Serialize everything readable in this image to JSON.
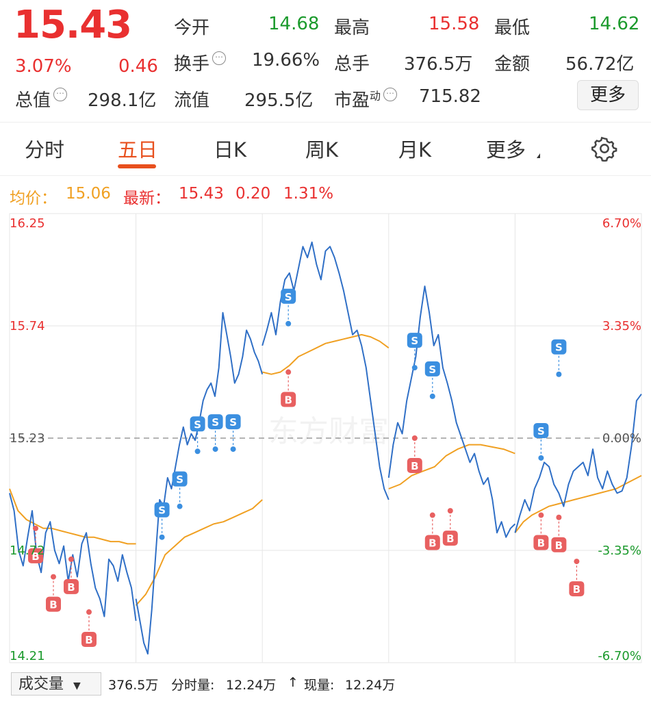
{
  "quote": {
    "price": "15.43",
    "change_pct": "3.07%",
    "change": "0.46",
    "open_label": "今开",
    "open": "14.68",
    "high_label": "最高",
    "high": "15.58",
    "low_label": "最低",
    "low": "14.62",
    "turnover_label": "换手",
    "turnover": "19.66%",
    "volume_label": "总手",
    "volume": "376.5万",
    "amount_label": "金额",
    "amount": "56.72亿",
    "mktcap_label": "总值",
    "mktcap": "298.1亿",
    "float_label": "流值",
    "float_cap": "295.5亿",
    "pe_label": "市盈",
    "pe_sup": "动",
    "pe": "715.82",
    "more_label": "更多"
  },
  "tabs": [
    "分时",
    "五日",
    "日K",
    "周K",
    "月K",
    "更多"
  ],
  "active_tab": "五日",
  "legend": {
    "avg_label": "均价：",
    "avg": "15.06",
    "latest_label": "最新：",
    "latest": "15.43",
    "latest_chg": "0.20",
    "latest_pct": "1.31%"
  },
  "colors": {
    "up": "#e93030",
    "down": "#1b9a2c",
    "accent": "#e8501e",
    "price_line": "#2f6fc6",
    "avg_line": "#f0a022"
  },
  "chart_data": {
    "type": "line",
    "y_left_ticks": [
      "16.25",
      "15.74",
      "15.23",
      "14.72",
      "14.21"
    ],
    "y_right_ticks": [
      "6.70%",
      "3.35%",
      "0.00%",
      "-3.35%",
      "-6.70%"
    ],
    "ylim": [
      14.21,
      16.25
    ],
    "reference": 15.23,
    "days": 5,
    "watermark": "东方财富",
    "series": [
      {
        "role": "price",
        "days": [
          [
            14.98,
            14.9,
            14.72,
            14.65,
            14.78,
            14.9,
            14.7,
            14.62,
            14.8,
            14.85,
            14.72,
            14.66,
            14.74,
            14.58,
            14.7,
            14.6,
            14.75,
            14.8,
            14.66,
            14.55,
            14.5,
            14.42,
            14.68,
            14.65,
            14.58,
            14.7,
            14.62,
            14.55,
            14.4
          ],
          [
            14.5,
            14.4,
            14.3,
            14.25,
            14.45,
            14.7,
            14.95,
            14.92,
            15.05,
            15.0,
            15.1,
            15.2,
            15.28,
            15.2,
            15.25,
            15.22,
            15.3,
            15.4,
            15.45,
            15.48,
            15.42,
            15.55,
            15.8,
            15.7,
            15.6,
            15.48,
            15.52,
            15.6,
            15.72,
            15.68,
            15.62,
            15.58,
            15.52
          ],
          [
            15.65,
            15.72,
            15.8,
            15.7,
            15.85,
            15.95,
            15.98,
            15.9,
            16.0,
            16.1,
            16.05,
            16.12,
            16.02,
            15.95,
            16.08,
            16.1,
            16.05,
            15.98,
            15.9,
            15.8,
            15.7,
            15.72,
            15.65,
            15.55,
            15.4,
            15.25,
            15.1,
            15.0,
            14.95
          ],
          [
            15.05,
            15.2,
            15.3,
            15.25,
            15.4,
            15.5,
            15.6,
            15.78,
            15.92,
            15.8,
            15.65,
            15.7,
            15.55,
            15.48,
            15.4,
            15.3,
            15.24,
            15.18,
            15.12,
            15.16,
            15.08,
            15.02,
            15.05,
            14.95,
            14.8,
            14.85,
            14.78,
            14.82,
            14.84
          ],
          [
            14.8,
            14.88,
            14.95,
            14.9,
            15.0,
            15.05,
            15.12,
            15.1,
            15.02,
            14.98,
            14.92,
            15.02,
            15.08,
            15.1,
            15.12,
            15.06,
            15.18,
            15.05,
            15.0,
            15.08,
            15.02,
            14.98,
            14.99,
            15.05,
            15.2,
            15.4,
            15.43
          ]
        ]
      },
      {
        "role": "average",
        "days": [
          [
            15.0,
            14.9,
            14.86,
            14.84,
            14.82,
            14.82,
            14.81,
            14.8,
            14.79,
            14.78,
            14.78,
            14.77,
            14.76,
            14.76,
            14.75,
            14.75
          ],
          [
            14.47,
            14.52,
            14.6,
            14.7,
            14.74,
            14.78,
            14.8,
            14.82,
            14.84,
            14.85,
            14.87,
            14.89,
            14.91,
            14.95
          ],
          [
            15.53,
            15.52,
            15.53,
            15.56,
            15.6,
            15.62,
            15.64,
            15.66,
            15.67,
            15.68,
            15.69,
            15.7,
            15.69,
            15.67,
            15.64
          ],
          [
            15.0,
            15.02,
            15.06,
            15.08,
            15.1,
            15.15,
            15.18,
            15.2,
            15.2,
            15.19,
            15.18,
            15.16
          ],
          [
            14.8,
            14.85,
            14.88,
            14.9,
            14.92,
            14.93,
            14.94,
            14.95,
            14.96,
            14.97,
            14.98,
            14.99,
            15.0,
            15.02,
            15.04,
            15.06
          ]
        ]
      }
    ],
    "signals": [
      {
        "type": "B",
        "day": 0,
        "y": 14.82
      },
      {
        "type": "B",
        "day": 0,
        "y": 14.6
      },
      {
        "type": "B",
        "day": 0,
        "y": 14.68
      },
      {
        "type": "B",
        "day": 0,
        "y": 14.44
      },
      {
        "type": "S",
        "day": 1,
        "y": 14.78
      },
      {
        "type": "S",
        "day": 1,
        "y": 14.92
      },
      {
        "type": "S",
        "day": 1,
        "y": 15.17
      },
      {
        "type": "S",
        "day": 1,
        "y": 15.18
      },
      {
        "type": "S",
        "day": 1,
        "y": 15.18
      },
      {
        "type": "B",
        "day": 2,
        "y": 15.53
      },
      {
        "type": "S",
        "day": 2,
        "y": 15.75
      },
      {
        "type": "S",
        "day": 3,
        "y": 15.55
      },
      {
        "type": "S",
        "day": 3,
        "y": 15.42
      },
      {
        "type": "B",
        "day": 3,
        "y": 15.23
      },
      {
        "type": "B",
        "day": 3,
        "y": 14.88
      },
      {
        "type": "B",
        "day": 3,
        "y": 14.9
      },
      {
        "type": "B",
        "day": 4,
        "y": 14.88
      },
      {
        "type": "B",
        "day": 4,
        "y": 14.87
      },
      {
        "type": "B",
        "day": 4,
        "y": 14.67
      },
      {
        "type": "S",
        "day": 4,
        "y": 15.14
      },
      {
        "type": "S",
        "day": 4,
        "y": 15.52
      }
    ]
  },
  "volume_bar": {
    "select_label": "成交量",
    "total": "376.5万",
    "period_label": "分时量:",
    "period": "12.24万",
    "arrow": "↑",
    "current_label": "现量:",
    "current": "12.24万"
  }
}
